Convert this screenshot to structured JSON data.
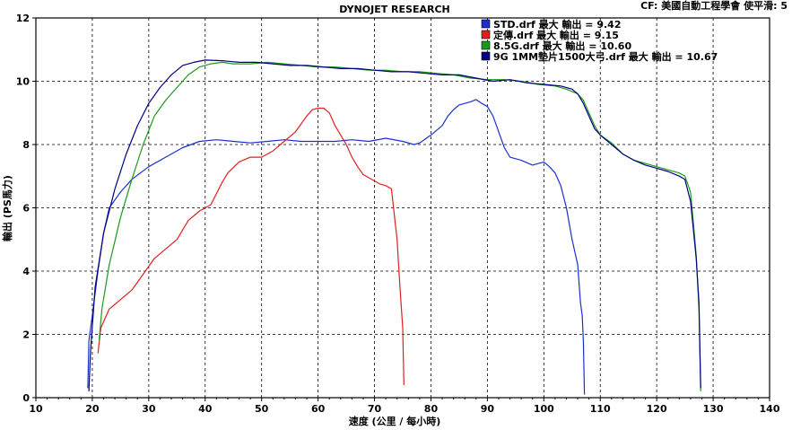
{
  "chart_data": {
    "type": "line",
    "title": "DYNOJET RESEARCH",
    "annotation": "CF: 美國自動工程學會 使平滑: 5",
    "xlabel": "速度 (公里 / 每小時)",
    "ylabel": "輸出 (PS馬力)",
    "xlim": [
      10,
      140
    ],
    "ylim": [
      0,
      12
    ],
    "xticks": [
      "10",
      "20",
      "30",
      "40",
      "50",
      "60",
      "70",
      "80",
      "90",
      "100",
      "110",
      "120",
      "130",
      "140"
    ],
    "yticks": [
      "0",
      "2",
      "4",
      "6",
      "8",
      "10",
      "12"
    ],
    "grid": true,
    "legend_position": "top-right",
    "series": [
      {
        "name": "STD.drf 最大 輸出 = 9.42",
        "color": "#1a2fd0",
        "points": [
          [
            19.2,
            0.3
          ],
          [
            19.4,
            1.8
          ],
          [
            20,
            2.6
          ],
          [
            21,
            4
          ],
          [
            22,
            5.2
          ],
          [
            23,
            6
          ],
          [
            25,
            6.5
          ],
          [
            27,
            6.9
          ],
          [
            30,
            7.3
          ],
          [
            33,
            7.6
          ],
          [
            36,
            7.9
          ],
          [
            39,
            8.1
          ],
          [
            42,
            8.15
          ],
          [
            45,
            8.1
          ],
          [
            48,
            8.05
          ],
          [
            51,
            8.1
          ],
          [
            54,
            8.15
          ],
          [
            57,
            8.1
          ],
          [
            60,
            8.1
          ],
          [
            63,
            8.1
          ],
          [
            66,
            8.15
          ],
          [
            69,
            8.1
          ],
          [
            72,
            8.2
          ],
          [
            75,
            8.1
          ],
          [
            77,
            8.0
          ],
          [
            78,
            8.05
          ],
          [
            80,
            8.3
          ],
          [
            82,
            8.6
          ],
          [
            83,
            8.9
          ],
          [
            84,
            9.1
          ],
          [
            85,
            9.25
          ],
          [
            86,
            9.3
          ],
          [
            87,
            9.35
          ],
          [
            88,
            9.42
          ],
          [
            89,
            9.3
          ],
          [
            90,
            9.2
          ],
          [
            91,
            8.9
          ],
          [
            92,
            8.4
          ],
          [
            93,
            7.9
          ],
          [
            94,
            7.6
          ],
          [
            96,
            7.5
          ],
          [
            98,
            7.35
          ],
          [
            100,
            7.45
          ],
          [
            101,
            7.3
          ],
          [
            102,
            7.1
          ],
          [
            103,
            6.7
          ],
          [
            104,
            6.0
          ],
          [
            105,
            5.0
          ],
          [
            106,
            4.2
          ],
          [
            106.5,
            3.0
          ],
          [
            106.8,
            2.6
          ],
          [
            107,
            1.8
          ],
          [
            107.2,
            0.1
          ]
        ]
      },
      {
        "name": "定傳.drf 最大 輸出 = 9.15",
        "color": "#e02020",
        "points": [
          [
            21,
            1.4
          ],
          [
            21.5,
            2.2
          ],
          [
            23,
            2.8
          ],
          [
            25,
            3.1
          ],
          [
            27,
            3.4
          ],
          [
            29,
            3.9
          ],
          [
            31,
            4.4
          ],
          [
            33,
            4.7
          ],
          [
            35,
            5.0
          ],
          [
            37,
            5.6
          ],
          [
            39,
            5.9
          ],
          [
            41,
            6.1
          ],
          [
            43,
            6.8
          ],
          [
            44,
            7.1
          ],
          [
            46,
            7.45
          ],
          [
            48,
            7.6
          ],
          [
            50,
            7.6
          ],
          [
            52,
            7.8
          ],
          [
            54,
            8.1
          ],
          [
            56,
            8.4
          ],
          [
            58,
            8.9
          ],
          [
            59,
            9.1
          ],
          [
            60,
            9.15
          ],
          [
            61,
            9.15
          ],
          [
            62,
            9.0
          ],
          [
            63,
            8.6
          ],
          [
            64,
            8.3
          ],
          [
            65,
            8.0
          ],
          [
            66,
            7.6
          ],
          [
            67,
            7.3
          ],
          [
            68,
            7.05
          ],
          [
            70,
            6.85
          ],
          [
            71,
            6.75
          ],
          [
            72,
            6.7
          ],
          [
            73,
            6.6
          ],
          [
            74,
            5.0
          ],
          [
            74.5,
            3.5
          ],
          [
            75,
            2.2
          ],
          [
            75.2,
            0.4
          ]
        ]
      },
      {
        "name": "8.5G.drf 最大 輸出 = 10.60",
        "color": "#1a9a1a",
        "points": [
          [
            21.2,
            1.8
          ],
          [
            21.7,
            2.8
          ],
          [
            23,
            4.2
          ],
          [
            25,
            5.7
          ],
          [
            27,
            6.9
          ],
          [
            29,
            8.0
          ],
          [
            31,
            8.9
          ],
          [
            33,
            9.4
          ],
          [
            35,
            9.8
          ],
          [
            37,
            10.2
          ],
          [
            39,
            10.45
          ],
          [
            41,
            10.55
          ],
          [
            43,
            10.6
          ],
          [
            45,
            10.55
          ],
          [
            48,
            10.55
          ],
          [
            51,
            10.6
          ],
          [
            54,
            10.55
          ],
          [
            57,
            10.5
          ],
          [
            60,
            10.45
          ],
          [
            63,
            10.45
          ],
          [
            66,
            10.4
          ],
          [
            69,
            10.35
          ],
          [
            72,
            10.35
          ],
          [
            75,
            10.3
          ],
          [
            78,
            10.3
          ],
          [
            81,
            10.25
          ],
          [
            84,
            10.2
          ],
          [
            87,
            10.1
          ],
          [
            90,
            10.05
          ],
          [
            93,
            10.05
          ],
          [
            96,
            10.0
          ],
          [
            99,
            9.9
          ],
          [
            102,
            9.85
          ],
          [
            104,
            9.75
          ],
          [
            106,
            9.6
          ],
          [
            107,
            9.4
          ],
          [
            108,
            9.0
          ],
          [
            109,
            8.6
          ],
          [
            110,
            8.3
          ],
          [
            112,
            8.05
          ],
          [
            114,
            7.7
          ],
          [
            116,
            7.5
          ],
          [
            118,
            7.4
          ],
          [
            120,
            7.3
          ],
          [
            122,
            7.2
          ],
          [
            124,
            7.1
          ],
          [
            125,
            7.0
          ],
          [
            126,
            6.5
          ],
          [
            126.5,
            5.5
          ],
          [
            127,
            4.5
          ],
          [
            127.5,
            2.8
          ],
          [
            127.8,
            0.2
          ]
        ]
      },
      {
        "name": "9G 1MM墊片1500大弓.drf 最大 輸出 = 10.67",
        "color": "#000080",
        "points": [
          [
            19.4,
            0.2
          ],
          [
            19.7,
            1.5
          ],
          [
            20.5,
            3.5
          ],
          [
            22,
            5.2
          ],
          [
            24,
            6.6
          ],
          [
            26,
            7.7
          ],
          [
            28,
            8.6
          ],
          [
            30,
            9.3
          ],
          [
            32,
            9.8
          ],
          [
            34,
            10.2
          ],
          [
            36,
            10.5
          ],
          [
            38,
            10.6
          ],
          [
            40,
            10.67
          ],
          [
            43,
            10.65
          ],
          [
            46,
            10.6
          ],
          [
            49,
            10.6
          ],
          [
            52,
            10.55
          ],
          [
            55,
            10.5
          ],
          [
            58,
            10.5
          ],
          [
            61,
            10.45
          ],
          [
            64,
            10.4
          ],
          [
            67,
            10.4
          ],
          [
            70,
            10.35
          ],
          [
            73,
            10.3
          ],
          [
            76,
            10.3
          ],
          [
            79,
            10.25
          ],
          [
            82,
            10.2
          ],
          [
            85,
            10.2
          ],
          [
            88,
            10.1
          ],
          [
            91,
            10.0
          ],
          [
            94,
            10.05
          ],
          [
            97,
            9.95
          ],
          [
            100,
            9.9
          ],
          [
            103,
            9.85
          ],
          [
            105,
            9.75
          ],
          [
            106,
            9.6
          ],
          [
            107,
            9.3
          ],
          [
            108,
            8.9
          ],
          [
            109,
            8.5
          ],
          [
            110,
            8.3
          ],
          [
            112,
            8.0
          ],
          [
            114,
            7.7
          ],
          [
            116,
            7.5
          ],
          [
            118,
            7.35
          ],
          [
            120,
            7.25
          ],
          [
            122,
            7.15
          ],
          [
            124,
            7.0
          ],
          [
            125,
            6.9
          ],
          [
            126,
            6.2
          ],
          [
            126.5,
            5.3
          ],
          [
            127,
            4.4
          ],
          [
            127.5,
            3.0
          ],
          [
            127.8,
            0.3
          ]
        ]
      }
    ]
  }
}
